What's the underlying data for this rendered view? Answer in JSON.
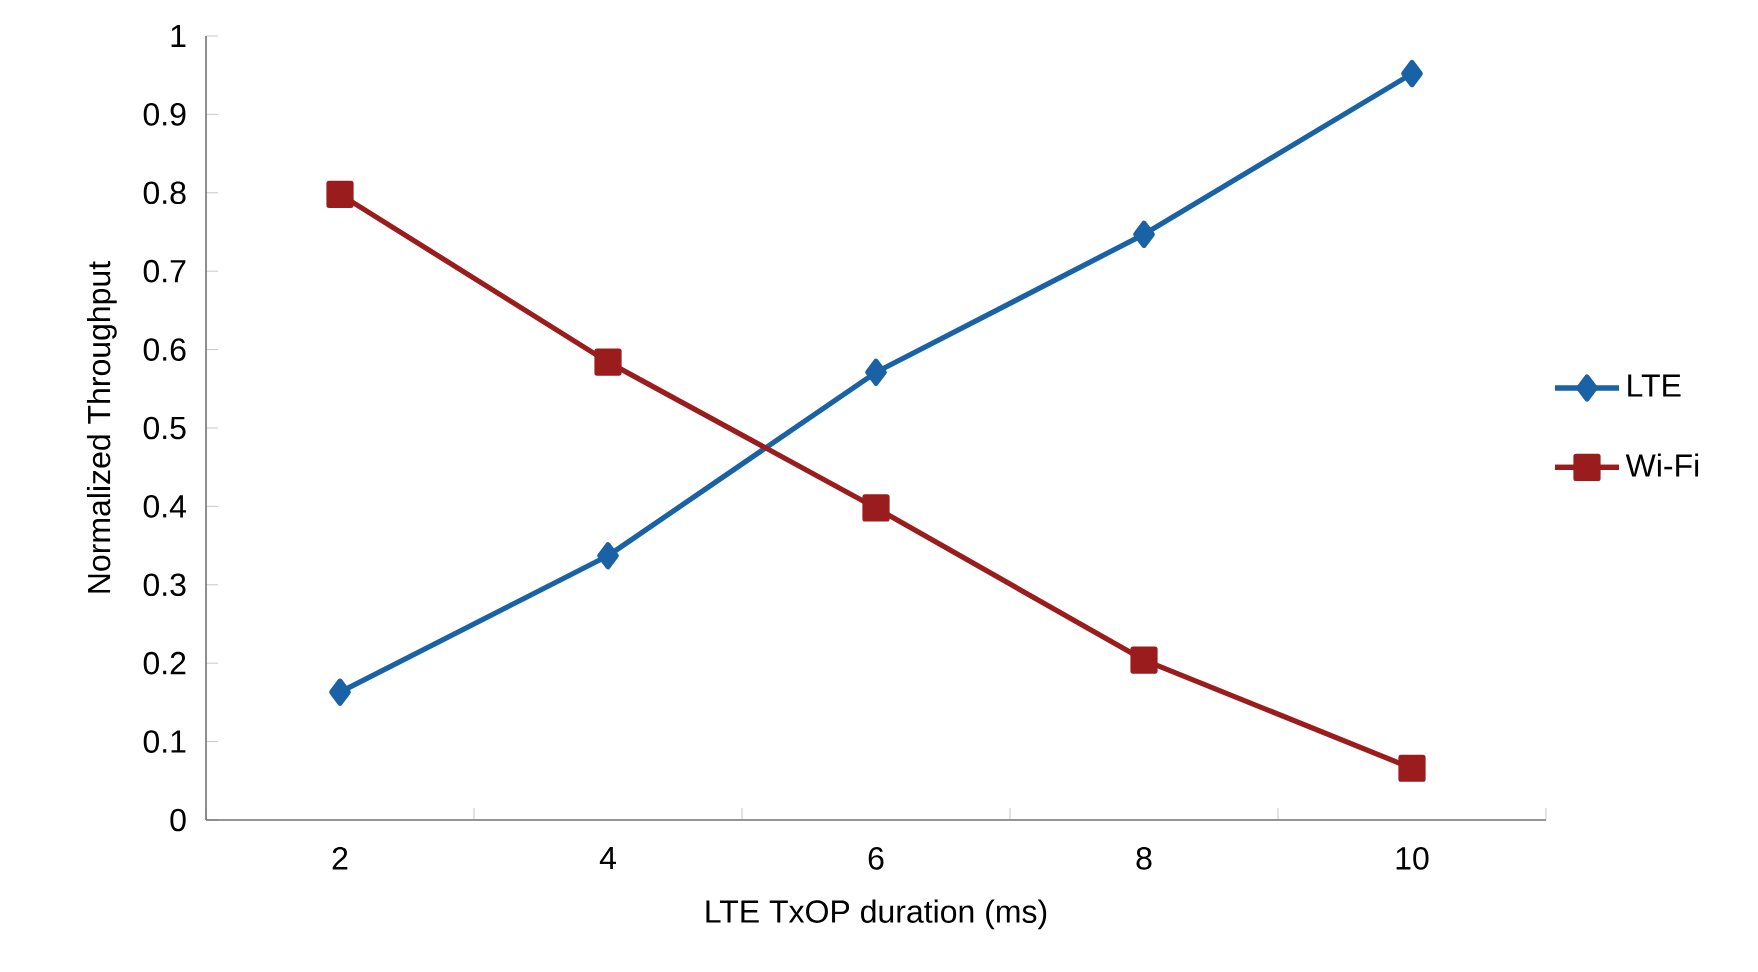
{
  "chart_data": {
    "type": "line",
    "xlabel": "LTE TxOP duration (ms)",
    "ylabel": "Normalized Throughput",
    "categories": [
      "2",
      "4",
      "6",
      "8",
      "10"
    ],
    "series": [
      {
        "name": "LTE",
        "color": "#1a62a6",
        "marker": "diamond",
        "values": [
          0.163,
          0.337,
          0.571,
          0.747,
          0.952
        ]
      },
      {
        "name": "Wi-Fi",
        "color": "#9b1c1c",
        "marker": "square",
        "values": [
          0.798,
          0.584,
          0.398,
          0.204,
          0.066
        ]
      }
    ],
    "ylim": [
      0,
      1
    ],
    "yticks": [
      0,
      0.1,
      0.2,
      0.3,
      0.4,
      0.5,
      0.6,
      0.7,
      0.8,
      0.9,
      1
    ],
    "grid": false,
    "legend": "right",
    "line_style": "solid"
  }
}
